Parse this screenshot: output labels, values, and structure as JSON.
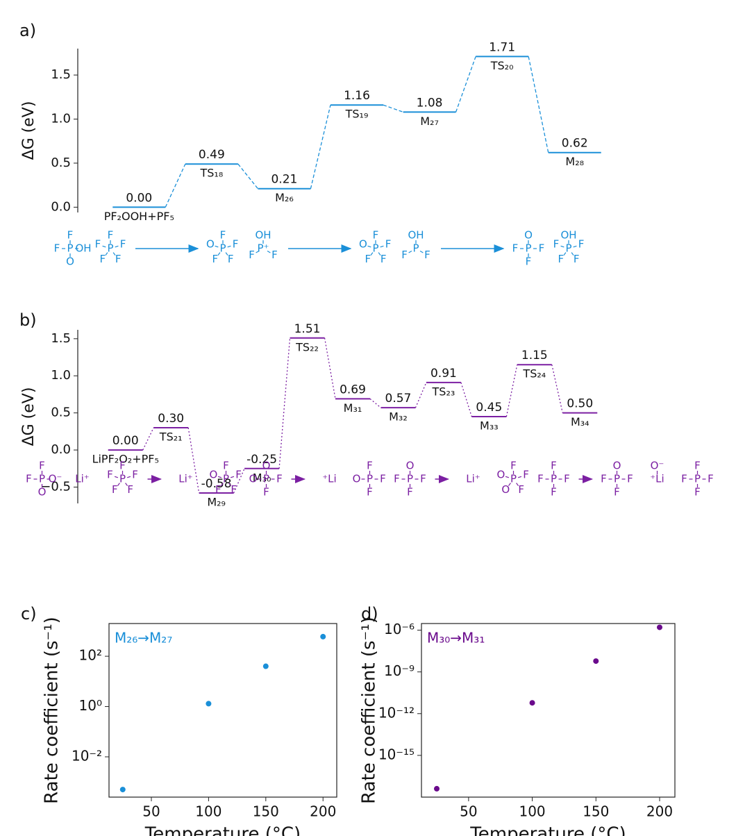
{
  "chart_data": [
    {
      "type": "energy",
      "panel_label": "a)",
      "ylabel": "ΔG (eV)",
      "color": "#1a8fd8",
      "line_style": "dashed",
      "categories": [
        "PF₂OOH+PF₅",
        "TS₁₈",
        "M₂₆",
        "TS₁₉",
        "M₂₇",
        "TS₂₀",
        "M₂₈"
      ],
      "values": [
        0,
        0.49,
        0.21,
        1.16,
        1.08,
        1.71,
        0.62
      ],
      "value_labels": [
        "0.00",
        "0.49",
        "0.21",
        "1.16",
        "1.08",
        "1.71",
        "0.62"
      ],
      "ylim": [
        -0.06,
        1.8
      ],
      "yticks": [
        {
          "value": 0,
          "label": "0.0"
        },
        {
          "value": 0.5,
          "label": "0.5"
        },
        {
          "value": 1,
          "label": "1.0"
        },
        {
          "value": 1.5,
          "label": "1.5"
        }
      ],
      "scheme": [
        [
          [
            "P",
            "F",
            "OH",
            "O",
            "F"
          ],
          [
            "P",
            "F",
            "F",
            "F",
            "F",
            "F"
          ]
        ],
        [
          [
            "P",
            "F",
            "F",
            "F",
            "F",
            "O"
          ],
          [
            "P⁺",
            "OH",
            "F",
            "F"
          ]
        ],
        [
          [
            "P",
            "F",
            "F",
            "F",
            "F",
            "O"
          ],
          [
            "P",
            "OH",
            "F",
            "F"
          ]
        ],
        [
          [
            "P",
            "O",
            "F",
            "F",
            "F"
          ],
          [
            "P",
            "OH",
            "F",
            "F",
            "F",
            "F"
          ]
        ]
      ]
    },
    {
      "type": "energy",
      "panel_label": "b)",
      "ylabel": "ΔG (eV)",
      "color": "#7b1fa2",
      "line_style": "dotted",
      "categories": [
        "LiPF₂O₂+PF₅",
        "TS₂₁",
        "M₂₉",
        "M₃₀",
        "TS₂₂",
        "M₃₁",
        "M₃₂",
        "TS₂₃",
        "M₃₃",
        "TS₂₄",
        "M₃₄"
      ],
      "values": [
        0,
        0.3,
        -0.58,
        -0.25,
        1.51,
        0.69,
        0.57,
        0.91,
        0.45,
        1.15,
        0.5
      ],
      "value_labels": [
        "0.00",
        "0.30",
        "-0.58",
        "-0.25",
        "1.51",
        "0.69",
        "0.57",
        "0.91",
        "0.45",
        "1.15",
        "0.50"
      ],
      "ylim": [
        -0.72,
        1.62
      ],
      "yticks": [
        {
          "value": -0.5,
          "label": "−0.5"
        },
        {
          "value": 0,
          "label": "0.0"
        },
        {
          "value": 0.5,
          "label": "0.5"
        },
        {
          "value": 1,
          "label": "1.0"
        },
        {
          "value": 1.5,
          "label": "1.5"
        }
      ],
      "scheme": [
        [
          [
            "P",
            "F",
            "O⁻",
            "O",
            "F"
          ],
          [
            "Li⁺"
          ],
          [
            "P",
            "F",
            "F",
            "F",
            "F",
            "F"
          ]
        ],
        [
          [
            "Li⁺"
          ],
          [
            "P",
            "F",
            "F",
            "F",
            "F",
            "O"
          ],
          [
            "P",
            "O",
            "F",
            "F",
            "O"
          ]
        ],
        [
          [
            "⁺Li"
          ],
          [
            "P",
            "F",
            "F",
            "F",
            "O"
          ],
          [
            "P",
            "O",
            "F",
            "F",
            "F"
          ]
        ],
        [
          [
            "Li⁺"
          ],
          [
            "P",
            "F",
            "F",
            "F",
            "O",
            "O"
          ],
          [
            "P",
            "F",
            "F",
            "F",
            "F"
          ]
        ],
        [
          [
            "P",
            "O",
            "F",
            "F",
            "F"
          ],
          [
            "⁺Li",
            "O⁻"
          ],
          [
            "P",
            "F",
            "F",
            "F",
            "F"
          ]
        ]
      ]
    },
    {
      "type": "scatter",
      "panel_label": "c)",
      "annotation": "M₂₆→M₂₇",
      "color": "#1a8fd8",
      "log_y": true,
      "xlabel": "Temperature (°C)",
      "ylabel": "Rate coefficient (s⁻¹)",
      "x": [
        25,
        100,
        150,
        200
      ],
      "values": [
        0.0005,
        1.3,
        40,
        600
      ],
      "xlim": [
        13,
        212
      ],
      "xticks": [
        50,
        100,
        150,
        200
      ],
      "ylim": [
        0.00025,
        2000
      ],
      "yticks": [
        {
          "value": 0.01,
          "label": "10⁻²"
        },
        {
          "value": 1,
          "label": "10⁰"
        },
        {
          "value": 100,
          "label": "10²"
        }
      ]
    },
    {
      "type": "scatter",
      "panel_label": "d)",
      "annotation": "M₃₀→M₃₁",
      "color": "#6a0a8c",
      "log_y": true,
      "xlabel": "Temperature (°C)",
      "ylabel": "Rate coefficient (s⁻¹)",
      "x": [
        25,
        100,
        150,
        200
      ],
      "values": [
        4e-18,
        6e-12,
        6e-09,
        1.6e-06
      ],
      "xlim": [
        13,
        212
      ],
      "xticks": [
        50,
        100,
        150,
        200
      ],
      "ylim": [
        1e-18,
        3e-06
      ],
      "yticks": [
        {
          "value": 1e-15,
          "label": "10⁻¹⁵"
        },
        {
          "value": 1e-12,
          "label": "10⁻¹²"
        },
        {
          "value": 1e-09,
          "label": "10⁻⁹"
        },
        {
          "value": 1e-06,
          "label": "10⁻⁶"
        }
      ]
    }
  ]
}
